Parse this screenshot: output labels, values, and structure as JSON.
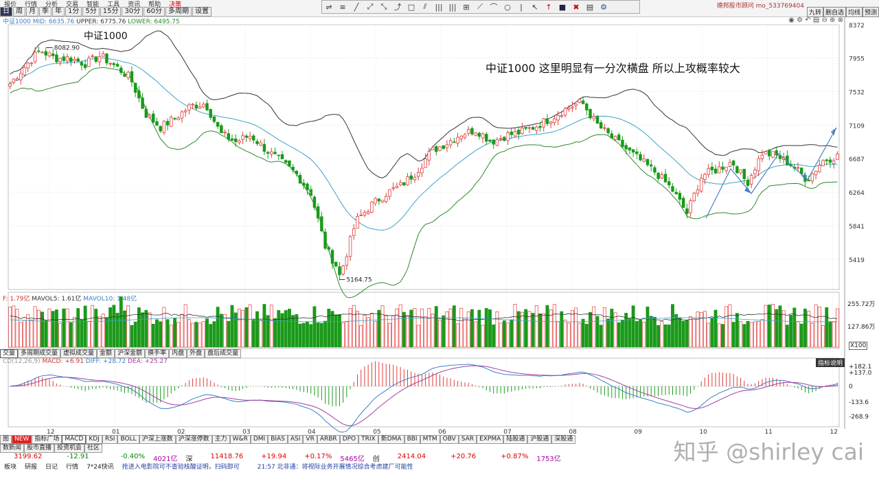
{
  "menu": [
    "报价",
    "行情",
    "分析",
    "交易",
    "智能",
    "工具",
    "资讯",
    "帮助",
    "决策"
  ],
  "account": "德邦股市顾问 mo_533769404",
  "right_tabs": [
    "九转",
    "删自选",
    "均线",
    "预测"
  ],
  "periods": [
    "日",
    "周",
    "月",
    "季",
    "年",
    "1分",
    "5分",
    "15分",
    "30分",
    "60分",
    "多周期",
    "设置"
  ],
  "draw_tools": [
    "⇌",
    "≡",
    "╱",
    "⤢",
    "⤡",
    "⤴",
    "□",
    "⫽",
    "|||",
    "|||",
    "⊞",
    "⟋",
    "⌒",
    "○",
    "|",
    "↖",
    "↑",
    "■",
    "✖",
    "▤",
    "⚙"
  ],
  "main_legend": {
    "label": "中证1000 MID: 6635.76",
    "upper": "UPPER: 6775.76",
    "lower": "LOWER: 6495.75"
  },
  "chart_title": "中证1000",
  "annotation": "中证1000 这里明显有一分次横盘 所以上攻概率较大",
  "chart_data": {
    "type": "candlestick",
    "y_ticks": [
      8372,
      7955,
      7532,
      7109,
      6687,
      6264,
      5841,
      5419
    ],
    "x_labels": [
      "12",
      "01",
      "02",
      "03",
      "04",
      "05",
      "06",
      "07",
      "08",
      "09",
      "10",
      "11",
      "12"
    ],
    "high_label": "8082.90",
    "low_label": "5164.75",
    "high_value": 8082.9,
    "low_value": 5164.75,
    "colors": {
      "up": "#e03a3a",
      "down": "#1a9a1a",
      "mid": "#3aa3c8",
      "upper": "#333333",
      "lower": "#2a8a2a",
      "arrow": "#4a7fc0"
    },
    "anchors": [
      7630,
      7850,
      8050,
      7950,
      7950,
      7880,
      7980,
      7850,
      7700,
      7250,
      7080,
      7200,
      7350,
      7380,
      7000,
      6900,
      6980,
      6800,
      6650,
      6500,
      6250,
      5550,
      5250,
      5900,
      6100,
      6250,
      6350,
      6520,
      6780,
      6880,
      7000,
      7050,
      6900,
      6980,
      7020,
      7100,
      7200,
      7320,
      7400,
      7120,
      6950,
      6800,
      6650,
      6500,
      6300,
      6000,
      6480,
      6550,
      6650,
      6380,
      6760,
      6720,
      6600,
      6420,
      6660,
      6720
    ]
  },
  "vol_legend": {
    "label": "F: 1.79亿",
    "mavol5": "MAVOL5: 1.61亿",
    "mavol10": "MAVOL10: 1.48亿"
  },
  "vol_axis": [
    "255.72万",
    "127.86万"
  ],
  "vol_unit": "X100",
  "vol_tabs": [
    "交量",
    "多周期成交量",
    "虚拟成交量",
    "金额",
    "沪深金额",
    "换手率",
    "内盘",
    "外盘",
    "盘后成交量"
  ],
  "macd_legend": {
    "label": "CD(12,26,9)",
    "macd": "MACD: +6.91",
    "diff": "DIFF: +28.72",
    "dea": "DEA: +25.27"
  },
  "macd_axis": [
    "+182.1",
    "+137.0",
    "0",
    "-133.6",
    "-268.9"
  ],
  "indicator_btn": "指标说明",
  "indicator_tabs": [
    "图",
    "NEW",
    "指标广场",
    "MACD",
    "KDJ",
    "RSI",
    "BOLL",
    "沪深上涨数",
    "沪深涨停数",
    "主力",
    "W&R",
    "DMI",
    "BIAS",
    "ASI",
    "VR",
    "ARBR",
    "DPO",
    "TRIX",
    "新DMA",
    "BBI",
    "MTM",
    "OBV",
    "SAR",
    "EXPMA",
    "陆股通",
    "沪股通",
    "深股通"
  ],
  "sub_tabs": [
    "数新闻",
    "股市直播",
    "投资机会",
    "社区"
  ],
  "quote": [
    "3199.62",
    "-12.91",
    "-0.40%",
    "4021亿",
    "深",
    "11418.76",
    "+19.94",
    "+0.17%",
    "5465亿",
    "创",
    "2414.04",
    "+20.76",
    "+0.87%",
    "1753亿"
  ],
  "news": [
    "板块",
    "研报",
    "日记",
    "行情",
    "7*24快讯",
    "抢进入电影院可不查验核酸证明，扫码即可",
    "21:57 北非通：将视际业务开展情况综合考虑建厂可能性"
  ],
  "watermark": "知乎 @shirley cai"
}
